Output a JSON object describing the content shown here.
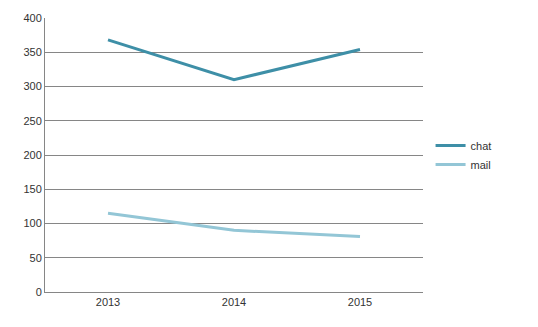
{
  "chart_data": {
    "type": "line",
    "categories": [
      "2013",
      "2014",
      "2015"
    ],
    "series": [
      {
        "name": "chat",
        "color": "#3e8fa7",
        "values": [
          368,
          310,
          354
        ]
      },
      {
        "name": "mail",
        "color": "#93c6d6",
        "values": [
          115,
          90,
          81
        ]
      }
    ],
    "ylim": [
      0,
      400
    ],
    "yticks": [
      0,
      50,
      100,
      150,
      200,
      250,
      300,
      350,
      400
    ],
    "grid": true,
    "legend": "right"
  }
}
